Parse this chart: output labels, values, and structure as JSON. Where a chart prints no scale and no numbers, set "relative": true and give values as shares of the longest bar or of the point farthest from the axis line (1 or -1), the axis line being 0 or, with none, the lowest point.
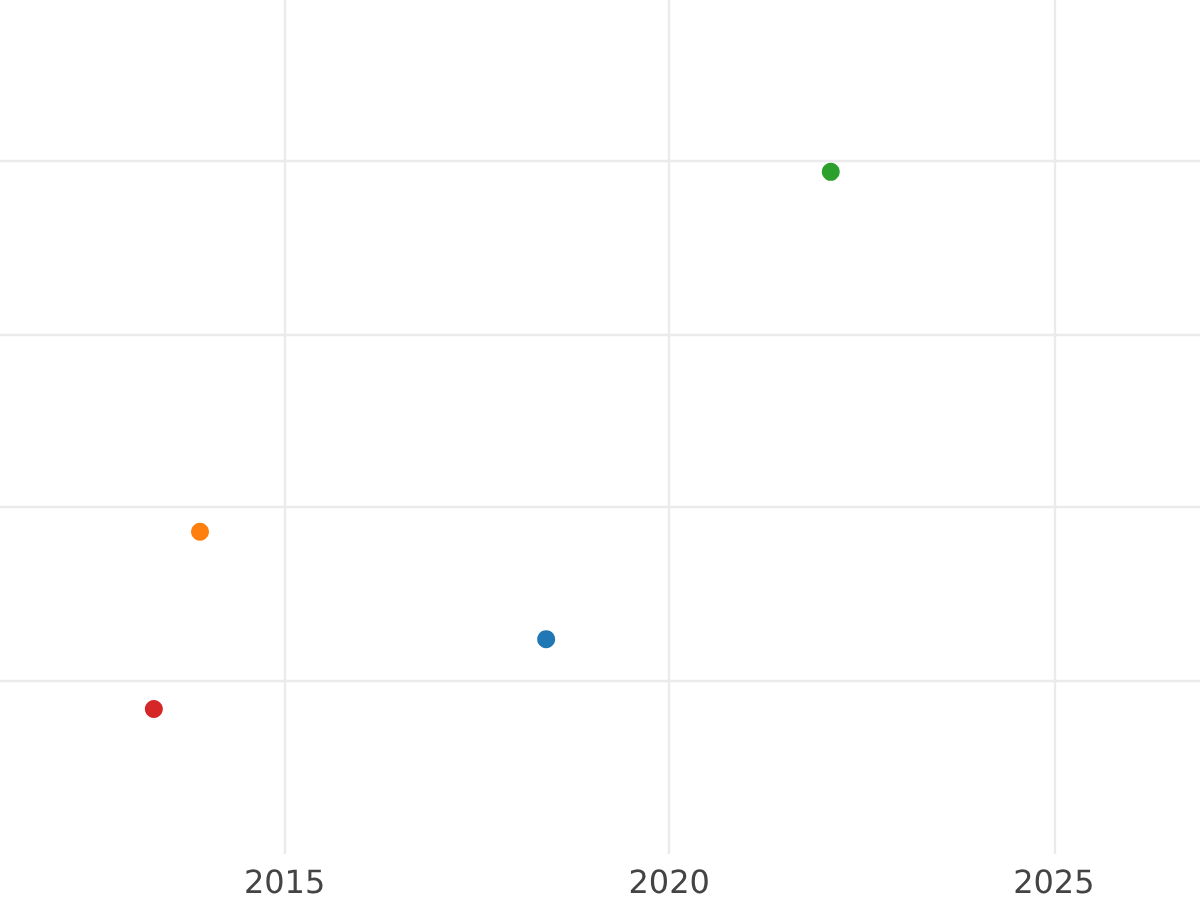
{
  "chart_data": {
    "type": "scatter",
    "x": [
      2018.4,
      2013.9,
      2022.1,
      2013.3
    ],
    "values": [
      0.13,
      0.33,
      1,
      0
    ],
    "colors": [
      "#1f77b4",
      "#ff7f0e",
      "#2ca02c",
      "#d62728"
    ],
    "relative": true,
    "xlim": [
      2011.3,
      2026.9
    ],
    "xticks": [
      2015,
      2020,
      2025
    ],
    "grid": true,
    "marker": "circle",
    "tick_labels": "x"
  }
}
